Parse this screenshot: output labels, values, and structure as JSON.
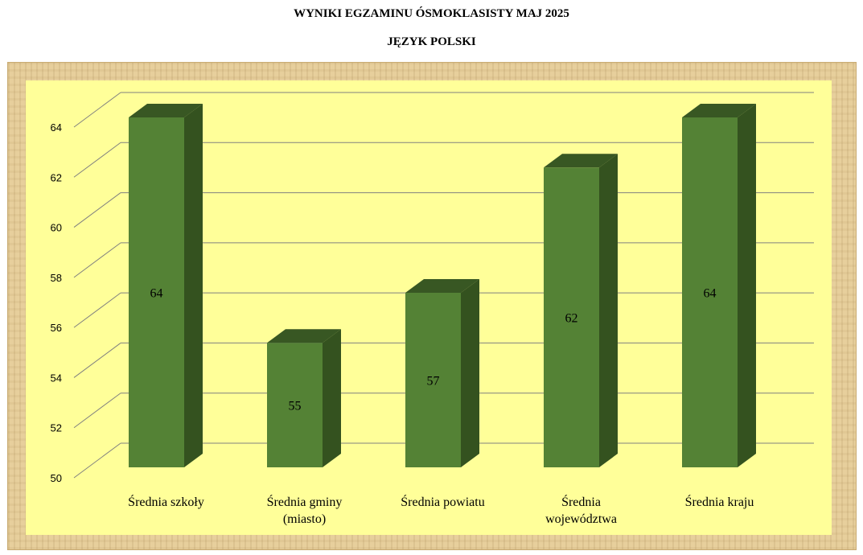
{
  "title": "WYNIKI EGZAMINU ÓSMOKLASISTY MAJ 2025",
  "subtitle": "JĘZYK POLSKI",
  "colors": {
    "plot_background": "#ffff99",
    "bar_front": "#548235",
    "bar_top": "#385723",
    "bar_side": "#34521f",
    "gridline": "#808080",
    "frame": "#e7cf9c"
  },
  "chart_data": {
    "type": "bar",
    "style": "3d-column",
    "title": "WYNIKI EGZAMINU ÓSMOKLASISTY MAJ 2025",
    "subtitle": "JĘZYK POLSKI",
    "categories": [
      "Średnia szkoły",
      "Średnia gminy (miasto)",
      "Średnia powiatu",
      "Średnia województwa",
      "Średnia kraju"
    ],
    "category_lines": [
      [
        "Średnia szkoły"
      ],
      [
        "Średnia gminy",
        "(miasto)"
      ],
      [
        "Średnia powiatu"
      ],
      [
        "Średnia",
        "województwa"
      ],
      [
        "Średnia kraju"
      ]
    ],
    "values": [
      64,
      55,
      57,
      62,
      64
    ],
    "data_labels": [
      "64",
      "55",
      "57",
      "62",
      "64"
    ],
    "ylim": [
      50,
      64
    ],
    "yticks": [
      50,
      52,
      54,
      56,
      58,
      60,
      62,
      64
    ],
    "ytick_labels": [
      "50",
      "52",
      "54",
      "56",
      "58",
      "60",
      "62",
      "64"
    ],
    "xlabel": "",
    "ylabel": "",
    "grid": true,
    "legend": "none"
  }
}
